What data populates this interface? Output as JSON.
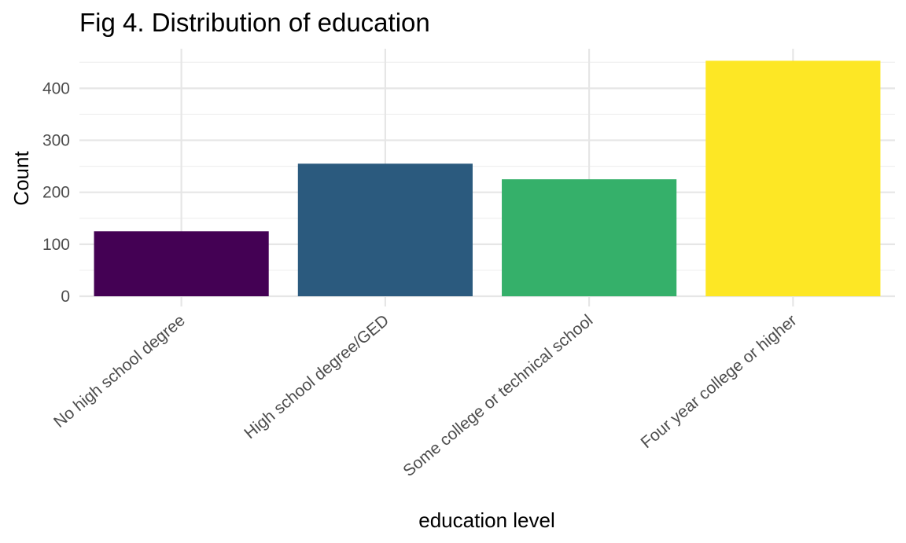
{
  "chart_data": {
    "type": "bar",
    "title": "Fig 4. Distribution of education",
    "xlabel": "education level",
    "ylabel": "Count",
    "categories": [
      "No high school degree",
      "High school degree/GED",
      "Some college or technical school",
      "Four year college or higher"
    ],
    "values": [
      125,
      255,
      225,
      453
    ],
    "colors": [
      "#440154",
      "#2b5a7e",
      "#35b06a",
      "#fde725"
    ],
    "ylim": [
      0,
      470
    ],
    "yticks": [
      0,
      100,
      200,
      300,
      400
    ],
    "grid": true,
    "legend": "none"
  }
}
